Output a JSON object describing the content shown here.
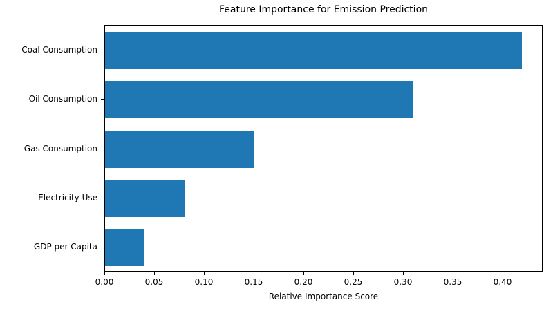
{
  "chart_data": {
    "type": "bar",
    "orientation": "horizontal",
    "title": "Feature Importance for Emission Prediction",
    "xlabel": "Relative Importance Score",
    "ylabel": "",
    "categories": [
      "Coal Consumption",
      "Oil Consumption",
      "Gas Consumption",
      "Electricity Use",
      "GDP per Capita"
    ],
    "values": [
      0.42,
      0.31,
      0.15,
      0.08,
      0.04
    ],
    "xlim": [
      0,
      0.44
    ],
    "xticks": [
      0.0,
      0.05,
      0.1,
      0.15,
      0.2,
      0.25,
      0.3,
      0.35,
      0.4
    ],
    "xtick_decimals": 2,
    "bar_color": "#1f77b4",
    "grid": false,
    "legend": null
  }
}
